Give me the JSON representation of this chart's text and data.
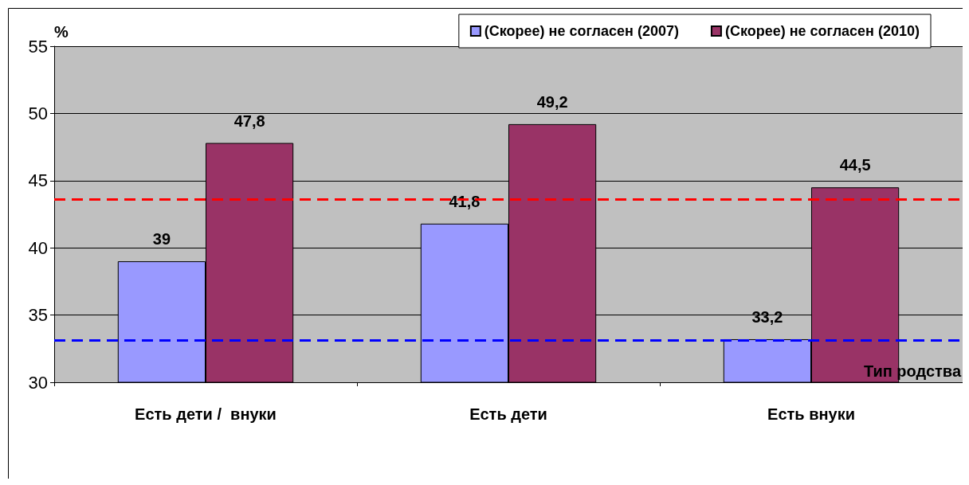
{
  "chart_data": {
    "type": "bar",
    "categories": [
      "Есть дети /  внуки",
      "Есть дети",
      "Есть внуки"
    ],
    "series": [
      {
        "name": "(Скорее) не согласен (2007)",
        "color": "#9999ff",
        "values": [
          39,
          41.8,
          33.2
        ],
        "value_labels": [
          "39",
          "41,8",
          "33,2"
        ]
      },
      {
        "name": "(Скорее) не согласен (2010)",
        "color": "#993366",
        "values": [
          47.8,
          49.2,
          44.5
        ],
        "value_labels": [
          "47,8",
          "49,2",
          "44,5"
        ]
      }
    ],
    "ylim": [
      30,
      55
    ],
    "yticks": [
      30,
      35,
      40,
      45,
      50,
      55
    ],
    "ylabel": "%",
    "xlabel": "Тип родства",
    "grid": "y",
    "legend": "top right",
    "ref_lines": [
      {
        "axis": "y",
        "value": 43.6,
        "color": "#ff0000",
        "line_style": "dashed"
      },
      {
        "axis": "y",
        "value": 33.1,
        "color": "#0000ff",
        "line_style": "dashed"
      }
    ]
  }
}
